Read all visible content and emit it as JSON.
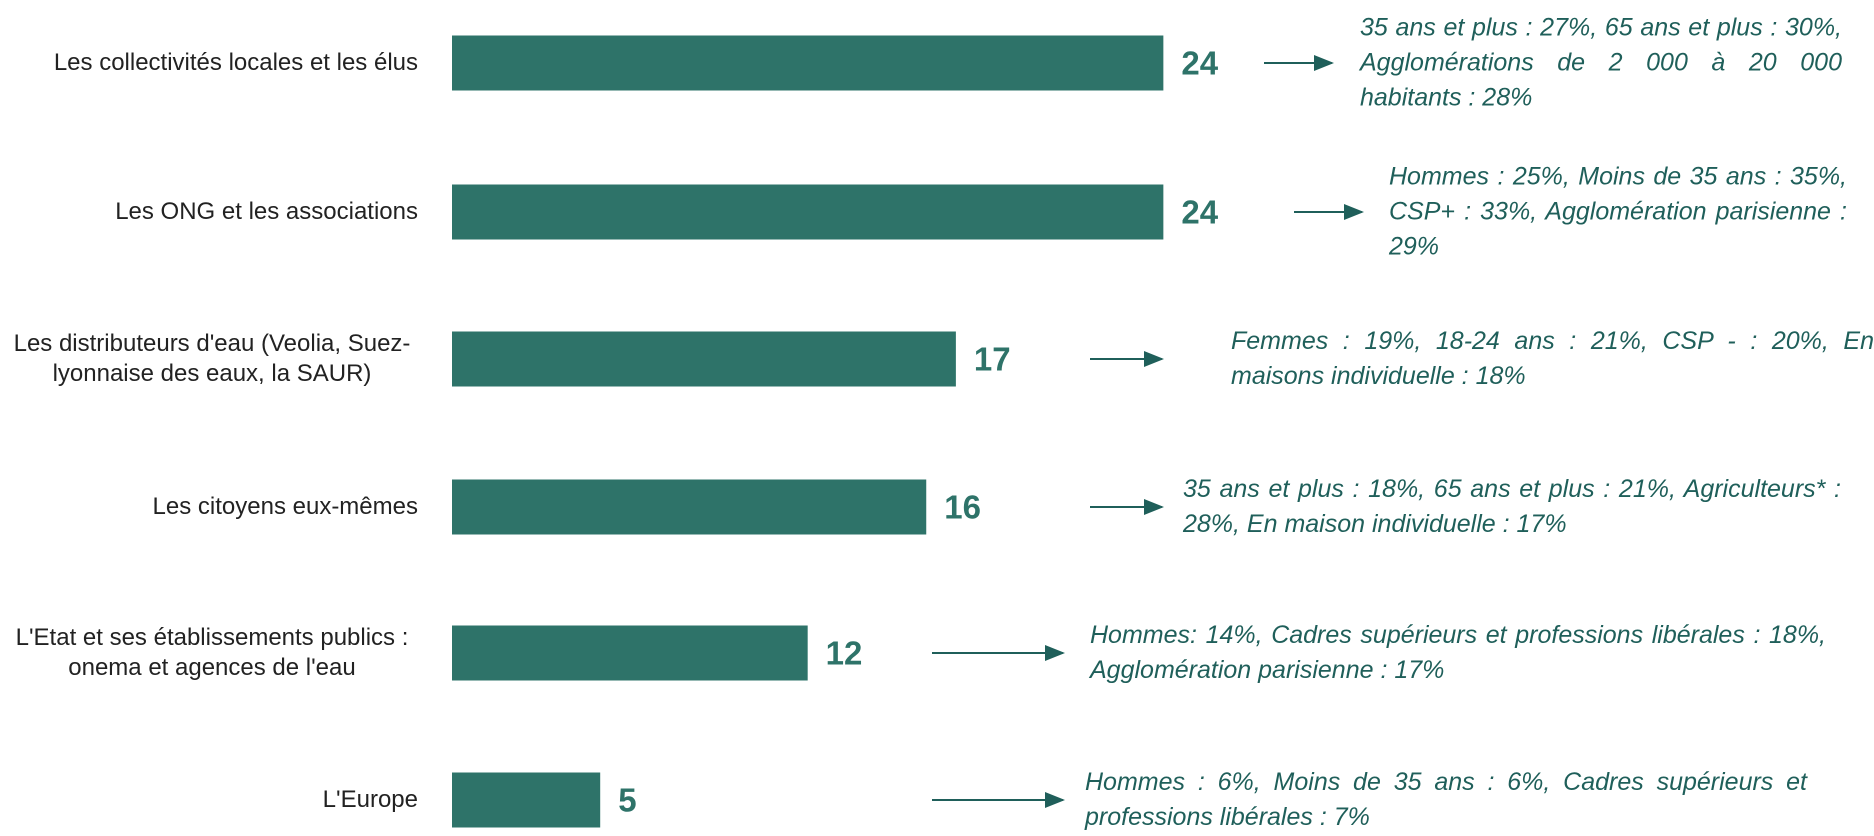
{
  "chart_data": {
    "type": "bar",
    "orientation": "horizontal",
    "color": "#2e7369",
    "categories": [
      "Les collectivités locales et les élus",
      "Les ONG et les associations",
      "Les distributeurs d'eau (Veolia, Suez-lyonnaise des eaux, la SAUR)",
      "Les citoyens eux-mêmes",
      "L'Etat et ses établissements publics : onema et agences de l'eau",
      "L'Europe"
    ],
    "values": [
      24,
      24,
      17,
      16,
      12,
      5
    ],
    "annotations": [
      "35 ans et plus : 27%, 65 ans et plus : 30%, Agglomérations de 2 000 à 20 000 habitants : 28%",
      "Hommes : 25%, Moins de 35 ans : 35%, CSP+ : 33%, Agglomération parisienne : 29%",
      "Femmes : 19%, 18-24 ans : 21%, CSP - : 20%, En maisons individuelle : 18%",
      "35 ans et plus : 18%, 65 ans et plus : 21%, Agriculteurs* : 28%, En maison individuelle : 17%",
      "Hommes: 14%, Cadres supérieurs et professions libérales : 18%, Agglomération parisienne : 17%",
      "Hommes : 6%, Moins de 35 ans : 6%, Cadres supérieurs et professions libérales : 7%"
    ]
  }
}
